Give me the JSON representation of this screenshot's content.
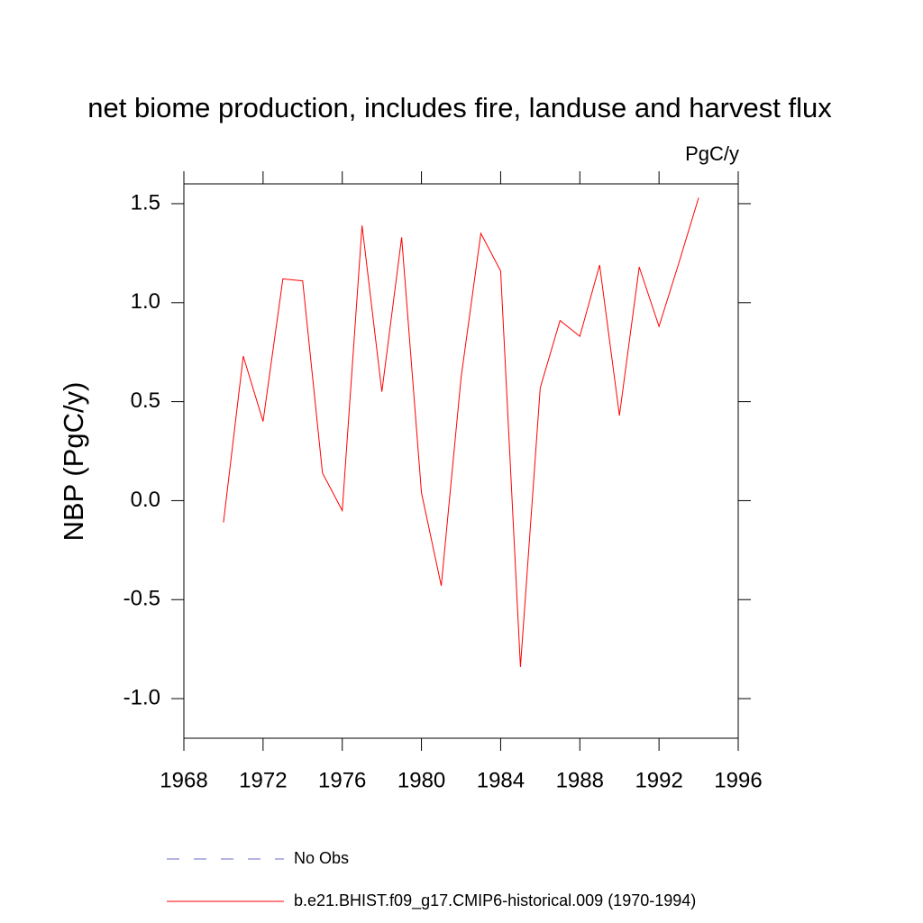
{
  "chart_data": {
    "type": "line",
    "title": "net biome production, includes fire, landuse and harvest flux",
    "units": "PgC/y",
    "y_label": "NBP  (PgC/y)",
    "x": [
      1970,
      1971,
      1972,
      1973,
      1974,
      1975,
      1976,
      1977,
      1978,
      1979,
      1980,
      1981,
      1982,
      1983,
      1984,
      1985,
      1986,
      1987,
      1988,
      1989,
      1990,
      1991,
      1992,
      1993,
      1994
    ],
    "series": [
      {
        "name": "No Obs",
        "color": "#6a6acd",
        "dashed": true,
        "values": [
          null,
          null,
          null,
          null,
          null,
          null,
          null,
          null,
          null,
          null,
          null,
          null,
          null,
          null,
          null,
          null,
          null,
          null,
          null,
          null,
          null,
          null,
          null,
          null,
          null
        ]
      },
      {
        "name": "b.e21.BHIST.f09_g17.CMIP6-historical.009 (1970-1994)",
        "color": "#ff0000",
        "dashed": false,
        "values": [
          -0.11,
          0.73,
          0.4,
          1.12,
          1.11,
          0.14,
          -0.05,
          1.39,
          0.55,
          1.33,
          0.04,
          -0.43,
          0.62,
          1.35,
          1.16,
          -0.84,
          0.57,
          0.91,
          0.83,
          1.19,
          0.43,
          1.18,
          0.88,
          1.2,
          1.53
        ]
      }
    ],
    "xlim": [
      1968,
      1996
    ],
    "xticks": [
      1968,
      1972,
      1976,
      1980,
      1984,
      1988,
      1992,
      1996
    ],
    "ylim": [
      -1.2,
      1.6
    ],
    "yticks": [
      {
        "value": -1,
        "label": "-1.0"
      },
      -0.5,
      {
        "value": 0,
        "label": "0.0"
      },
      0.5,
      {
        "value": 1,
        "label": "1.0"
      },
      1.5
    ],
    "grid": false
  }
}
